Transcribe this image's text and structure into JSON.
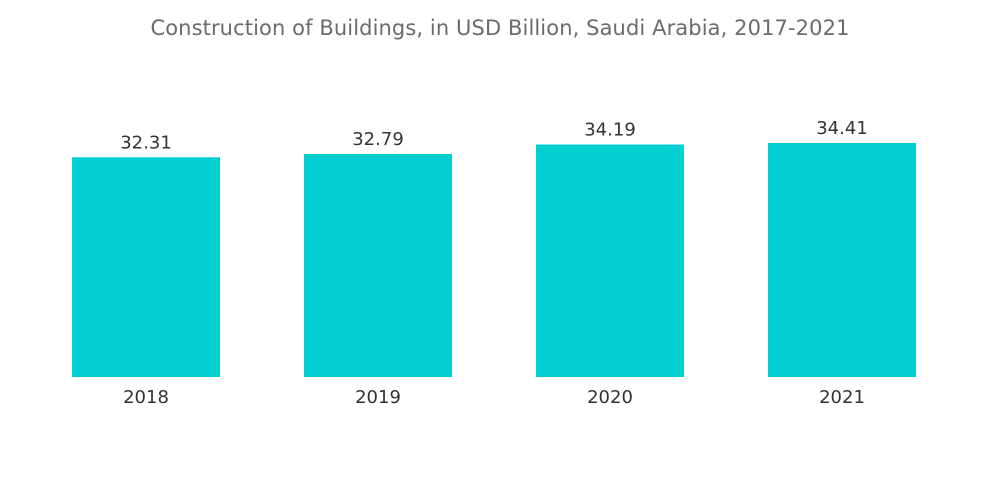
{
  "chart_data": {
    "type": "bar",
    "title": "Construction of Buildings, in USD Billion, Saudi Arabia, 2017-2021",
    "categories": [
      "2018",
      "2019",
      "2020",
      "2021"
    ],
    "values": [
      32.31,
      32.79,
      34.19,
      34.41
    ],
    "value_labels": [
      "32.31",
      "32.79",
      "34.19",
      "34.41"
    ],
    "xlabel": "",
    "ylabel": "",
    "ylim": [
      0,
      34.41
    ],
    "grid": false,
    "legend": "none",
    "bar_color": "#00CED1"
  }
}
